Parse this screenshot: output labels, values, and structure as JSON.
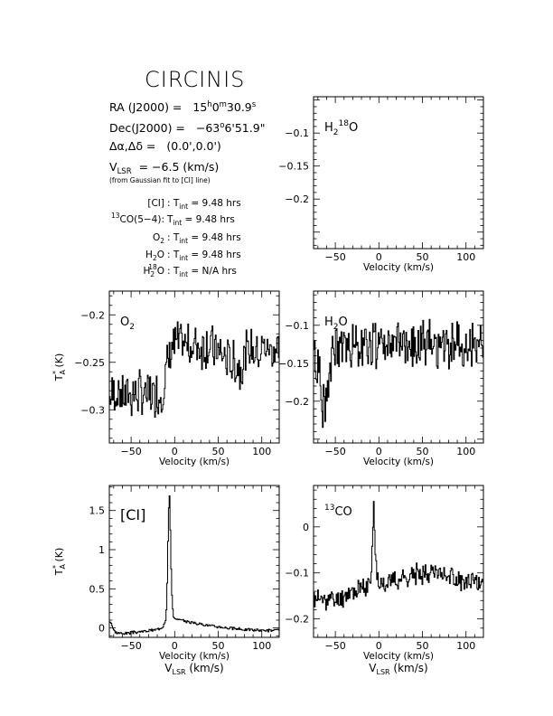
{
  "header": {
    "title": "CIRCINIS",
    "ra": {
      "label": "RA (J2000) =",
      "h": "15",
      "hu": "h",
      "m": "0",
      "mu": "m",
      "s": "30.9",
      "su": "s"
    },
    "dec": {
      "label": "Dec(J2000) =",
      "d": "−63",
      "du": "o",
      "rest": "6'51.9\""
    },
    "offset": {
      "label": "Δα,Δδ =",
      "value": "(0.0',0.0')"
    },
    "vlsr": {
      "label": "V",
      "sub": "LSR",
      "value": "= −6.5 (km/s)"
    },
    "fit_note": "(from Gaussian fit to [CI] line)",
    "integrations": [
      {
        "pre": "",
        "sup": "",
        "main": "[CI]",
        "sub": "",
        "post": "",
        "eq_a": ": T",
        "eq_sub": "int",
        "eq_b": "= 9.48 hrs"
      },
      {
        "pre": "",
        "sup": "13",
        "main": "CO(5−4):",
        "sub": "",
        "post": "",
        "eq_a": "T",
        "eq_sub": "int",
        "eq_b": "= 9.48 hrs"
      },
      {
        "pre": "O",
        "sup": "",
        "main": "",
        "sub": "2",
        "post": "",
        "eq_a": ": T",
        "eq_sub": "int",
        "eq_b": "= 9.48 hrs"
      },
      {
        "pre": "H",
        "sup": "",
        "main": "",
        "sub": "2",
        "post": "O",
        "eq_a": ": T",
        "eq_sub": "int",
        "eq_b": "= 9.48 hrs"
      },
      {
        "pre": "H",
        "sup": "18",
        "main": "",
        "sub": "2",
        "post": "O",
        "eq_a": ": T",
        "eq_sub": "int",
        "eq_b": "= N/A hrs"
      }
    ]
  },
  "chart_data": [
    {
      "id": "h218o",
      "type": "line",
      "label": {
        "base": "H",
        "sub": "2",
        "sup": "18",
        "tail": "O"
      },
      "xlabel": "Velocity (km/s)",
      "ylabel": "",
      "xlim": [
        -75,
        120
      ],
      "ylim": [
        -0.275,
        -0.045
      ],
      "xticks": [
        -50,
        0,
        50,
        100
      ],
      "yticks": [
        -0.1,
        -0.15,
        -0.2
      ],
      "yticklabels": [
        "−0.1",
        "−0.15",
        "−0.2"
      ],
      "series": [],
      "noise_seed": 0
    },
    {
      "id": "o2",
      "type": "line",
      "label": {
        "base": "O",
        "sub": "2",
        "sup": "",
        "tail": ""
      },
      "xlabel": "Velocity (km/s)",
      "ylabel": "T*A (K)",
      "xlim": [
        -75,
        120
      ],
      "ylim": [
        -0.335,
        -0.175
      ],
      "xticks": [
        -50,
        0,
        50,
        100
      ],
      "yticks": [
        -0.2,
        -0.25,
        -0.3
      ],
      "yticklabels": [
        "−0.2",
        "−0.25",
        "−0.3"
      ],
      "profile": {
        "v": [
          -75,
          -15,
          -5,
          40,
          60,
          75,
          85,
          120
        ],
        "t": [
          -0.283,
          -0.283,
          -0.232,
          -0.232,
          -0.247,
          -0.255,
          -0.235,
          -0.235
        ]
      },
      "noise": 0.024,
      "noise_seed": 7
    },
    {
      "id": "h2o",
      "type": "line",
      "label": {
        "base": "H",
        "sub": "2",
        "sup": "",
        "tail": "O"
      },
      "xlabel": "Velocity (km/s)",
      "ylabel": "",
      "xlim": [
        -75,
        120
      ],
      "ylim": [
        -0.255,
        -0.055
      ],
      "xticks": [
        -50,
        0,
        50,
        100
      ],
      "yticks": [
        -0.1,
        -0.15,
        -0.2
      ],
      "yticklabels": [
        "−0.1",
        "−0.15",
        "−0.2"
      ],
      "profile": {
        "v": [
          -75,
          -70,
          -65,
          -60,
          -55,
          -50,
          -30,
          120
        ],
        "t": [
          -0.14,
          -0.16,
          -0.2,
          -0.19,
          -0.15,
          -0.13,
          -0.125,
          -0.125
        ]
      },
      "noise": 0.032,
      "noise_seed": 19
    },
    {
      "id": "ci",
      "type": "line",
      "label": {
        "base": "[CI]",
        "sub": "",
        "sup": "",
        "tail": ""
      },
      "xlabel": "VLSR (km/s)",
      "ylabel": "T*A (K)",
      "xlim": [
        -75,
        120
      ],
      "ylim": [
        -0.12,
        1.82
      ],
      "xticks": [
        -50,
        0,
        50,
        100
      ],
      "yticks": [
        0,
        0.5,
        1,
        1.5
      ],
      "yticklabels": [
        "0",
        "0.5",
        "1",
        "1.5"
      ],
      "profile": {
        "v": [
          -75,
          -73,
          -71,
          -68,
          -60,
          -40,
          -20,
          -14,
          -11,
          -10,
          -9,
          -8,
          -7,
          -6.5,
          -6,
          -5,
          -4,
          -3,
          -2,
          0,
          5,
          20,
          40,
          60,
          80,
          100,
          120
        ],
        "t": [
          0.08,
          0.06,
          -0.02,
          -0.06,
          -0.07,
          -0.05,
          -0.02,
          0.02,
          0.1,
          0.25,
          0.6,
          1.2,
          1.62,
          1.72,
          1.62,
          1.05,
          0.55,
          0.3,
          0.16,
          0.11,
          0.1,
          0.07,
          0.03,
          0.0,
          -0.02,
          -0.03,
          -0.03
        ]
      },
      "noise": 0.018,
      "noise_seed": 3
    },
    {
      "id": "co13",
      "type": "line",
      "label": {
        "base": "CO",
        "sub": "",
        "sup": "13",
        "tail": ""
      },
      "xlabel": "VLSR (km/s)",
      "ylabel": "",
      "xlim": [
        -75,
        120
      ],
      "ylim": [
        -0.24,
        0.09
      ],
      "xticks": [
        -50,
        0,
        50,
        100
      ],
      "yticks": [
        0,
        -0.1,
        -0.2
      ],
      "yticklabels": [
        "0",
        "−0.1",
        "−0.2"
      ],
      "profile": {
        "v": [
          -75,
          -50,
          -30,
          -15,
          -10,
          -8,
          -7,
          -6.5,
          -6,
          -5,
          -3,
          0,
          5,
          20,
          40,
          60,
          80,
          100,
          120
        ],
        "t": [
          -0.155,
          -0.16,
          -0.14,
          -0.13,
          -0.12,
          -0.05,
          0.03,
          0.05,
          0.02,
          -0.04,
          -0.1,
          -0.12,
          -0.12,
          -0.115,
          -0.105,
          -0.095,
          -0.105,
          -0.125,
          -0.12
        ]
      },
      "noise": 0.022,
      "noise_seed": 11
    }
  ]
}
